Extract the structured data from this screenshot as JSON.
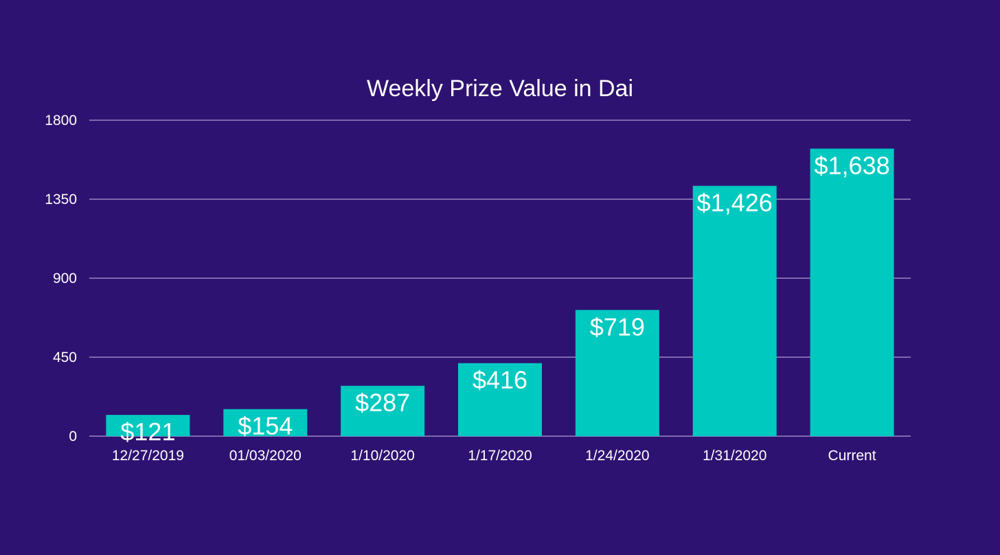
{
  "chart_data": {
    "type": "bar",
    "title": "Weekly Prize Value in Dai",
    "xlabel": "",
    "ylabel": "",
    "categories": [
      "12/27/2019",
      "01/03/2020",
      "1/10/2020",
      "1/17/2020",
      "1/24/2020",
      "1/31/2020",
      "Current"
    ],
    "values": [
      121,
      154,
      287,
      416,
      719,
      1426,
      1638
    ],
    "data_labels": [
      "$121",
      "$154",
      "$287",
      "$416",
      "$719",
      "$1,426",
      "$1,638"
    ],
    "ylim": [
      0,
      1800
    ],
    "yticks": [
      0,
      450,
      900,
      1350,
      1800
    ],
    "ytick_labels": [
      "0",
      "450",
      "900",
      "1350",
      "1800"
    ],
    "grid": true,
    "legend": "none",
    "colors": {
      "background": "#2e1271",
      "bar": "#00c9c0",
      "text": "#ffffff",
      "gridline": "#c9c2e6"
    }
  }
}
